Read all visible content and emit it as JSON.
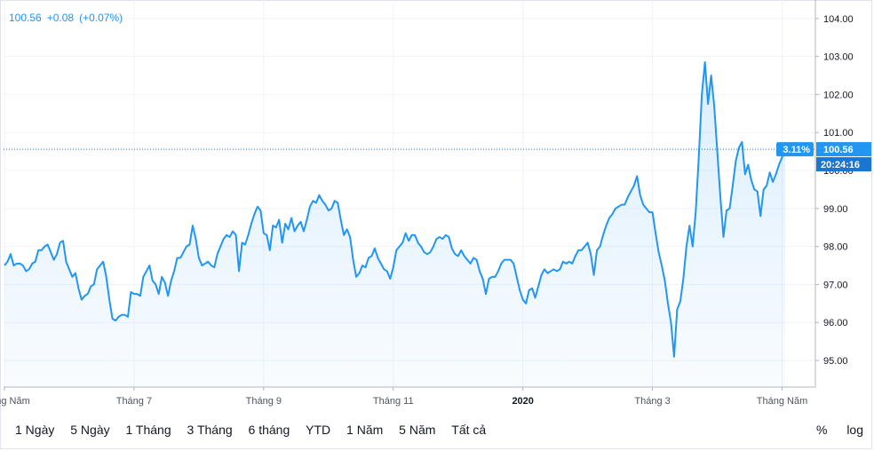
{
  "header": {
    "price": "100.56",
    "change": "+0.08",
    "change_pct": "(+0.07%)"
  },
  "price_label": "100.56",
  "time_label": "20:24:16",
  "pct_label": "3.11%",
  "range_buttons": [
    "1 Ngày",
    "5 Ngày",
    "1 Tháng",
    "3 Tháng",
    "6 tháng",
    "YTD",
    "1 Năm",
    "5 Năm",
    "Tất cả"
  ],
  "scale_options": [
    "%",
    "log"
  ],
  "colors": {
    "line": "#2196f3",
    "fill": "#e3f2fd",
    "grid": "#f0f3fa",
    "current_price_bg": "#2196f3",
    "time_bg": "#1976d2"
  },
  "chart_data": {
    "type": "area",
    "title": "",
    "xlabel": "",
    "ylabel": "",
    "ylim": [
      94.3,
      104.3
    ],
    "yticks": [
      95,
      96,
      97,
      98,
      99,
      100,
      101,
      102,
      103,
      104
    ],
    "ytick_labels": [
      "95.00",
      "96.00",
      "97.00",
      "98.00",
      "99.00",
      "100.00",
      "101.00",
      "102.00",
      "103.00",
      "104.00"
    ],
    "xticks": [
      {
        "index": 0,
        "label": "Tháng Năm"
      },
      {
        "index": 42,
        "label": "Tháng 7"
      },
      {
        "index": 84,
        "label": "Tháng 9"
      },
      {
        "index": 126,
        "label": "Tháng 11"
      },
      {
        "index": 168,
        "label": "2020",
        "bold": true
      },
      {
        "index": 210,
        "label": "Tháng 3"
      },
      {
        "index": 252,
        "label": "Tháng Năm"
      }
    ],
    "last_price": 100.56,
    "values": [
      97.5,
      97.6,
      97.8,
      97.5,
      97.55,
      97.55,
      97.5,
      97.35,
      97.4,
      97.55,
      97.6,
      97.9,
      97.9,
      98.0,
      98.05,
      97.85,
      97.65,
      97.8,
      98.1,
      98.15,
      97.6,
      97.4,
      97.2,
      97.3,
      96.9,
      96.6,
      96.7,
      96.75,
      96.95,
      97.0,
      97.4,
      97.5,
      97.6,
      97.2,
      96.6,
      96.1,
      96.05,
      96.15,
      96.2,
      96.2,
      96.15,
      96.8,
      96.75,
      96.75,
      96.7,
      97.2,
      97.35,
      97.5,
      97.1,
      97.0,
      96.75,
      97.2,
      97.05,
      96.7,
      97.1,
      97.35,
      97.7,
      97.7,
      97.85,
      98.0,
      98.05,
      98.55,
      98.2,
      97.7,
      97.5,
      97.55,
      97.6,
      97.5,
      97.45,
      97.8,
      98.0,
      98.2,
      98.3,
      98.25,
      98.4,
      98.3,
      97.35,
      98.1,
      98.05,
      98.3,
      98.6,
      98.85,
      99.05,
      98.95,
      98.35,
      98.3,
      97.9,
      98.55,
      98.5,
      98.7,
      98.1,
      98.6,
      98.45,
      98.75,
      98.4,
      98.55,
      98.65,
      98.4,
      98.7,
      99.05,
      99.2,
      99.15,
      99.35,
      99.2,
      99.1,
      98.95,
      99.0,
      99.2,
      99.15,
      98.7,
      98.3,
      98.45,
      98.25,
      97.65,
      97.2,
      97.3,
      97.5,
      97.45,
      97.7,
      97.75,
      97.95,
      97.7,
      97.55,
      97.4,
      97.35,
      97.15,
      97.45,
      97.9,
      98.0,
      98.1,
      98.35,
      98.15,
      98.3,
      98.3,
      98.1,
      98.0,
      97.85,
      97.8,
      97.85,
      98.0,
      98.2,
      98.25,
      98.2,
      98.3,
      98.25,
      97.95,
      97.8,
      97.75,
      97.9,
      97.75,
      97.65,
      97.55,
      97.7,
      97.65,
      97.35,
      97.15,
      96.75,
      97.15,
      97.2,
      97.2,
      97.35,
      97.55,
      97.65,
      97.65,
      97.65,
      97.55,
      97.2,
      96.85,
      96.6,
      96.5,
      96.85,
      96.9,
      96.65,
      96.95,
      97.25,
      97.4,
      97.3,
      97.35,
      97.4,
      97.35,
      97.4,
      97.6,
      97.55,
      97.6,
      97.55,
      97.75,
      97.9,
      97.9,
      98.0,
      98.1,
      97.8,
      97.25,
      97.9,
      98.0,
      98.3,
      98.55,
      98.75,
      98.85,
      99.0,
      99.05,
      99.1,
      99.1,
      99.3,
      99.45,
      99.6,
      99.85,
      99.35,
      99.1,
      99.0,
      98.9,
      98.9,
      98.35,
      97.85,
      97.5,
      97.1,
      96.5,
      96.0,
      95.1,
      96.35,
      96.55,
      97.15,
      98.0,
      98.55,
      98.0,
      98.9,
      100.35,
      102.0,
      102.85,
      101.75,
      102.5,
      101.7,
      100.5,
      99.3,
      98.25,
      98.95,
      99.0,
      99.6,
      100.25,
      100.6,
      100.75,
      99.9,
      100.15,
      99.75,
      99.5,
      99.45,
      98.8,
      99.5,
      99.6,
      99.95,
      99.7,
      99.9,
      100.15,
      100.35,
      100.56
    ]
  }
}
